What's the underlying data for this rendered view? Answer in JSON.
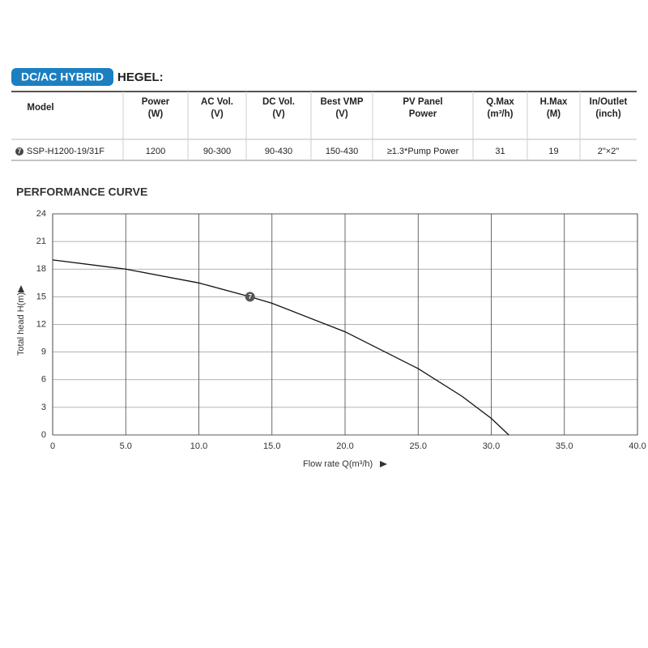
{
  "header": {
    "badge": "DC/AC HYBRID",
    "title": "HEGEL:"
  },
  "table": {
    "columns": [
      [
        "Model"
      ],
      [
        "Power",
        "(W)"
      ],
      [
        "AC Vol.",
        "(V)"
      ],
      [
        "DC Vol.",
        "(V)"
      ],
      [
        "Best VMP",
        "(V)"
      ],
      [
        "PV Panel",
        "Power"
      ],
      [
        "Q.Max",
        "(m³/h)"
      ],
      [
        "H.Max",
        "(M)"
      ],
      [
        "In/Outlet",
        "(inch)"
      ]
    ],
    "rows": [
      {
        "marker": "7",
        "cells": [
          "SSP-H1200-19/31F",
          "1200",
          "90-300",
          "90-430",
          "150-430",
          "≥1.3*Pump Power",
          "31",
          "19",
          "2\"×2\""
        ]
      }
    ]
  },
  "chart_data": {
    "type": "line",
    "title": "PERFORMANCE CURVE",
    "x_label": "Flow rate Q(m³/h)",
    "y_label": "Total head H(m)",
    "x": [
      0,
      5,
      10,
      13.5,
      15,
      20,
      25,
      28,
      30,
      31.2
    ],
    "series": [
      {
        "color": "#111111",
        "values": [
          19,
          18,
          16.5,
          15,
          14.3,
          11.2,
          7.2,
          4.2,
          1.8,
          0
        ]
      }
    ],
    "annotations": [
      {
        "x": 13.5,
        "y": 15,
        "text": "7"
      }
    ],
    "xlim": [
      0,
      40
    ],
    "ylim": [
      0,
      24
    ],
    "xticks": [
      0,
      {
        "value": 5,
        "label": "5.0"
      },
      {
        "value": 10,
        "label": "10.0"
      },
      {
        "value": 15,
        "label": "15.0"
      },
      {
        "value": 20,
        "label": "20.0"
      },
      {
        "value": 25,
        "label": "25.0"
      },
      {
        "value": 30,
        "label": "30.0"
      },
      {
        "value": 35,
        "label": "35.0"
      },
      {
        "value": 40,
        "label": "40.0"
      }
    ],
    "yticks": [
      0,
      3,
      6,
      9,
      12,
      15,
      18,
      21,
      24
    ],
    "grid": true
  }
}
